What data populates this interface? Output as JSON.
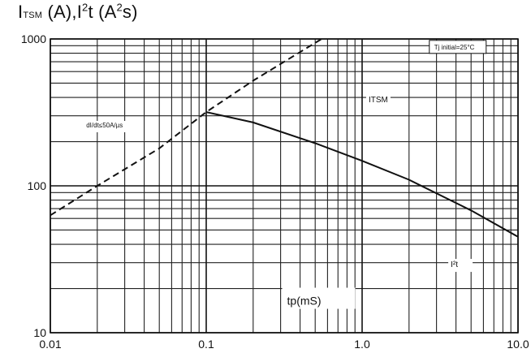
{
  "chart_data": {
    "type": "line",
    "title": {
      "main": "I",
      "sub": "TSM",
      "mid": " (A),I",
      "sup": "2",
      "end": "t (A",
      "sup2": "2",
      "tail": "s)"
    },
    "xlabel": "tp(mS)",
    "ylabel": "",
    "x_scale": "log",
    "y_scale": "log",
    "xlim": [
      0.01,
      10
    ],
    "ylim": [
      10,
      1000
    ],
    "grid": true,
    "x_ticks": [
      {
        "value": 0.01,
        "label": "0.01"
      },
      {
        "value": 0.1,
        "label": "0.1"
      },
      {
        "value": 1,
        "label": "1.0"
      },
      {
        "value": 10,
        "label": "10.0"
      }
    ],
    "y_ticks": [
      {
        "value": 10,
        "label": "10"
      },
      {
        "value": 100,
        "label": "100"
      },
      {
        "value": 1000,
        "label": "1000"
      }
    ],
    "series": [
      {
        "name": "ITSM",
        "style": "solid",
        "color": "#111111",
        "x": [
          0.1,
          0.2,
          0.5,
          1.0,
          2.0,
          5.0,
          10.0
        ],
        "y": [
          318,
          270,
          195,
          148,
          110,
          68,
          45
        ]
      },
      {
        "name": "dI/dt≤50A/µs",
        "style": "dashed",
        "color": "#111111",
        "x": [
          0.01,
          0.02,
          0.05,
          0.1,
          0.2,
          0.55
        ],
        "y": [
          63,
          100,
          180,
          318,
          520,
          1000
        ]
      }
    ],
    "annotations": [
      {
        "id": "tj",
        "text": "Tj initial=25°C",
        "x": 2.9,
        "y": 850,
        "boxed": true
      },
      {
        "id": "itsm",
        "text": "ITSM",
        "x": 1.1,
        "y": 370,
        "boxed": false
      },
      {
        "id": "i2t",
        "text": "I²t",
        "x": 3.7,
        "y": 28,
        "boxed": false
      },
      {
        "id": "didt",
        "text": "dI/dt≤50A/µs",
        "x": 0.017,
        "y": 250,
        "boxed": false
      },
      {
        "id": "tp",
        "text": "tp(mS)",
        "x": 0.33,
        "y": 15.5,
        "boxed": true
      }
    ]
  }
}
